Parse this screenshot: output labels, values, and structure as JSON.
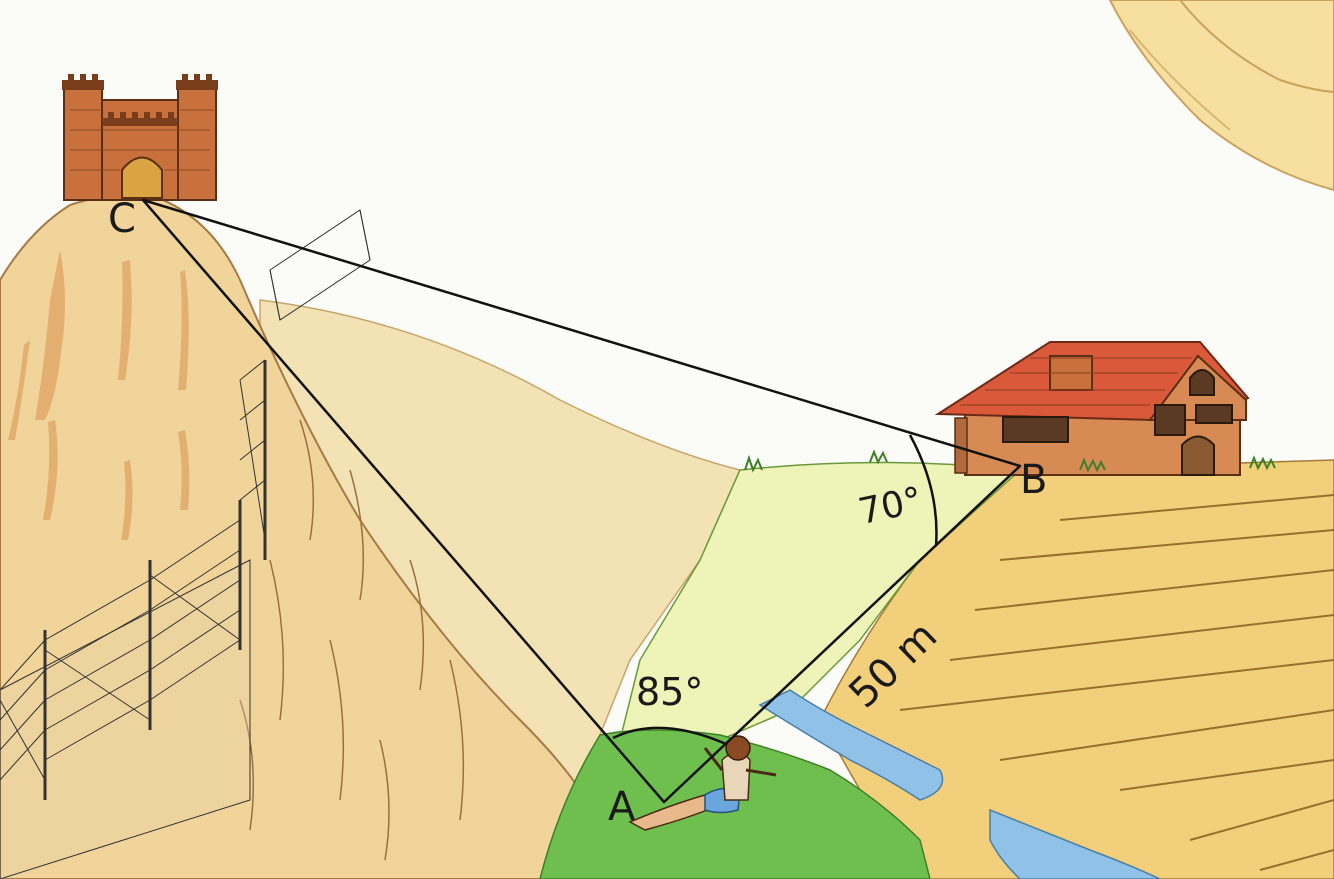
{
  "diagram": {
    "vertices": {
      "a": "A",
      "b": "B",
      "c": "C"
    },
    "angles": {
      "at_a": "85°",
      "at_b": "70°"
    },
    "side_ab": "50 m",
    "colors": {
      "sky": "#fbfbf7",
      "cliff": "#f0d49a",
      "cliff_shade": "#e2aa6c",
      "grass": "#6fbf4f",
      "meadow": "#eef3b8",
      "field": "#f2cf7a",
      "water": "#8fc2e6",
      "roof": "#d9593a",
      "wall": "#d88a55",
      "tower": "#c9713d",
      "line": "#111111"
    },
    "icons": [
      "castle-icon",
      "house-icon",
      "person-icon",
      "fence-icon",
      "sun-icon"
    ]
  }
}
